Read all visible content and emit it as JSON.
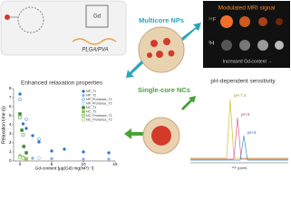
{
  "labels": {
    "polymer": "PLGA/PVA",
    "multicore": "Multicore NPs",
    "mri_title": "Modulated MRI signal",
    "mri_f": "¹⁹F",
    "mri_h": "¹H",
    "mri_gd": "Increased Gd-content →",
    "relax_title": "Enhanced relaxation properties",
    "singlecore": "Single-core NCs",
    "ph_title": "pH-dependent sensitivity",
    "ph_labels": [
      "pH 7.4",
      "pH 6",
      "pH 5"
    ],
    "ph_axis": "¹⁹F (ppm)"
  },
  "chart_data": {
    "type": "scatter",
    "y_label": "Relaxation time (s)",
    "x_label": "Gd-content [μg(Gd) mg(NP)⁻¹]",
    "xlim": [
      -1,
      15
    ],
    "ylim": [
      0,
      8
    ],
    "xticks": [
      0,
      5,
      10,
      15
    ],
    "yticks": [
      0,
      1,
      2,
      3,
      4,
      5,
      6,
      7,
      8
    ],
    "series": [
      {
        "name": "NP_T1",
        "color": "#2f74d0",
        "marker": "circle",
        "filled": true,
        "x": [
          0,
          0.5,
          1,
          2,
          3,
          5,
          7,
          10,
          14
        ],
        "values": [
          7.4,
          4.1,
          3.6,
          2.8,
          2.1,
          1.1,
          1.3,
          1.0,
          0.9
        ]
      },
      {
        "name": "NP_T2",
        "color": "#86b4ea",
        "marker": "circle",
        "filled": true,
        "x": [
          0,
          0.5,
          1,
          2,
          3,
          5,
          10,
          14
        ],
        "values": [
          0.6,
          0.4,
          0.35,
          0.3,
          0.3,
          0.25,
          0.2,
          0.2
        ]
      },
      {
        "name": "NP_Prohance_T1",
        "color": "#2f74d0",
        "marker": "circle",
        "filled": false,
        "x": [
          0,
          1,
          3
        ],
        "values": [
          6.8,
          4.6,
          2.4
        ]
      },
      {
        "name": "NP_Prohance_T2",
        "color": "#86b4ea",
        "marker": "circle",
        "filled": false,
        "x": [
          0,
          1,
          3
        ],
        "values": [
          0.5,
          0.4,
          0.3
        ]
      },
      {
        "name": "NC_T1",
        "color": "#3a8a2a",
        "marker": "square",
        "filled": true,
        "x": [
          0,
          0.3,
          0.6,
          1
        ],
        "values": [
          5.2,
          3.4,
          1.6,
          0.9
        ]
      },
      {
        "name": "NC_T2",
        "color": "#8cc44a",
        "marker": "square",
        "filled": true,
        "x": [
          0,
          0.3,
          0.6,
          1
        ],
        "values": [
          0.5,
          0.4,
          0.3,
          0.2
        ]
      },
      {
        "name": "NC_Prohance_T1",
        "color": "#3a8a2a",
        "marker": "square",
        "filled": false,
        "x": [
          0,
          0.5
        ],
        "values": [
          4.8,
          2.9
        ]
      },
      {
        "name": "NC_Prohance_T2",
        "color": "#8cc44a",
        "marker": "square",
        "filled": false,
        "x": [
          0,
          0.5
        ],
        "values": [
          0.4,
          0.3
        ]
      }
    ]
  }
}
